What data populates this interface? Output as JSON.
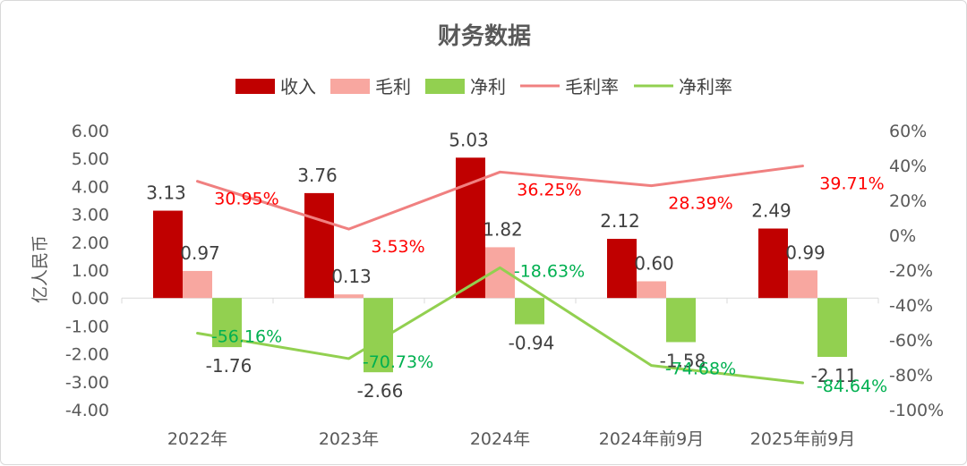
{
  "chart_data": {
    "type": "bar",
    "title": "财务数据",
    "ylabel": "亿人民币",
    "ylim": [
      -4,
      6
    ],
    "y2lim": [
      -100,
      60
    ],
    "y2_unit": "%",
    "grid": false,
    "legend_position": "top",
    "categories": [
      "2022年",
      "2023年",
      "2024年",
      "2024年前9月",
      "2025年前9月"
    ],
    "y_ticks": [
      "6.00",
      "5.00",
      "4.00",
      "3.00",
      "2.00",
      "1.00",
      "0.00",
      "-1.00",
      "-2.00",
      "-3.00",
      "-4.00"
    ],
    "y2_ticks": [
      "60%",
      "40%",
      "20%",
      "0%",
      "-20%",
      "-40%",
      "-60%",
      "-80%",
      "-100%"
    ],
    "series": [
      {
        "name": "收入",
        "kind": "bar",
        "axis": "left",
        "color": "#C00000",
        "values": [
          3.13,
          3.76,
          5.03,
          2.12,
          2.49
        ],
        "labels": [
          "3.13",
          "3.76",
          "5.03",
          "2.12",
          "2.49"
        ]
      },
      {
        "name": "毛利",
        "kind": "bar",
        "axis": "left",
        "color": "#F8A7A0",
        "values": [
          0.97,
          0.13,
          1.82,
          0.6,
          0.99
        ],
        "labels": [
          "0.97",
          "0.13",
          "1.82",
          "0.60",
          "0.99"
        ]
      },
      {
        "name": "净利",
        "kind": "bar",
        "axis": "left",
        "color": "#92D050",
        "values": [
          -1.76,
          -2.66,
          -0.94,
          -1.58,
          -2.11
        ],
        "labels": [
          "-1.76",
          "-2.66",
          "-0.94",
          "-1.58",
          "-2.11"
        ]
      },
      {
        "name": "毛利率",
        "kind": "line",
        "axis": "right",
        "color": "#F08080",
        "label_color": "#FF0000",
        "values": [
          30.95,
          3.53,
          36.25,
          28.39,
          39.71
        ],
        "labels": [
          "30.95%",
          "3.53%",
          "36.25%",
          "28.39%",
          "39.71%"
        ]
      },
      {
        "name": "净利率",
        "kind": "line",
        "axis": "right",
        "color": "#92D050",
        "label_color": "#00B050",
        "values": [
          -56.16,
          -70.73,
          -18.63,
          -74.68,
          -84.64
        ],
        "labels": [
          "-56.16%",
          "-70.73%",
          "-18.63%",
          "-74.68%",
          "-84.64%"
        ]
      }
    ]
  }
}
